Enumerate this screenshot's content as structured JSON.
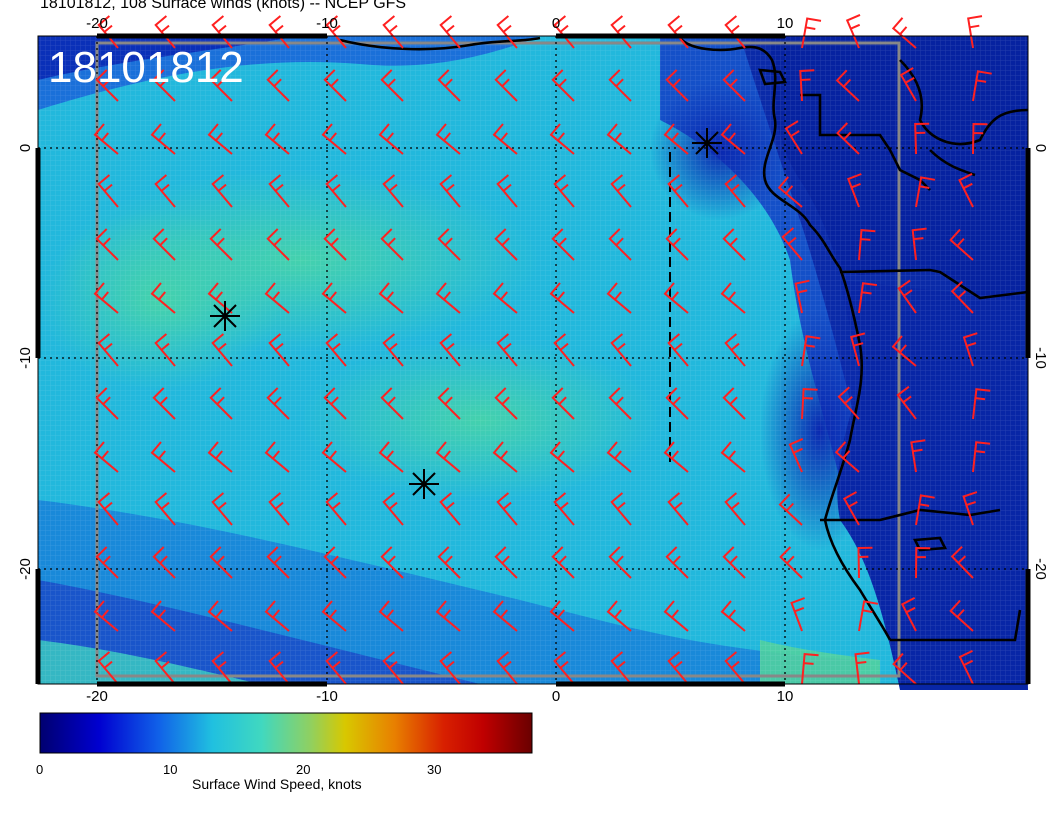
{
  "title": "18101812, 108 Surface winds (knots) -- NCEP GFS",
  "stamp": "18101812",
  "lon_ticks_top": [
    "-20",
    "-10",
    "0",
    "10"
  ],
  "lon_ticks_bottom": [
    "-20",
    "-10",
    "0",
    "10"
  ],
  "lat_ticks_left": [
    "0",
    "-10",
    "-20"
  ],
  "lat_ticks_right": [
    "0",
    "-10",
    "-20"
  ],
  "colorbar": {
    "title": "Surface Wind Speed, knots",
    "ticks": [
      "0",
      "10",
      "20",
      "30"
    ],
    "colors": [
      "#000070",
      "#0000c8",
      "#1560e0",
      "#20b0e0",
      "#30d8c8",
      "#50d8a0",
      "#a0d040",
      "#d8c000",
      "#e08000",
      "#d83000",
      "#c00000",
      "#700000"
    ]
  },
  "colors": {
    "ocean_mid": "#22c0d8",
    "ocean_band": "#40d0b0",
    "deep_blue": "#1030b0",
    "land": "#0a2aa0",
    "barb": "#ff2020",
    "coast": "#000000"
  },
  "icons": [
    "star-marker-icon",
    "star-marker-icon",
    "star-marker-icon"
  ]
}
